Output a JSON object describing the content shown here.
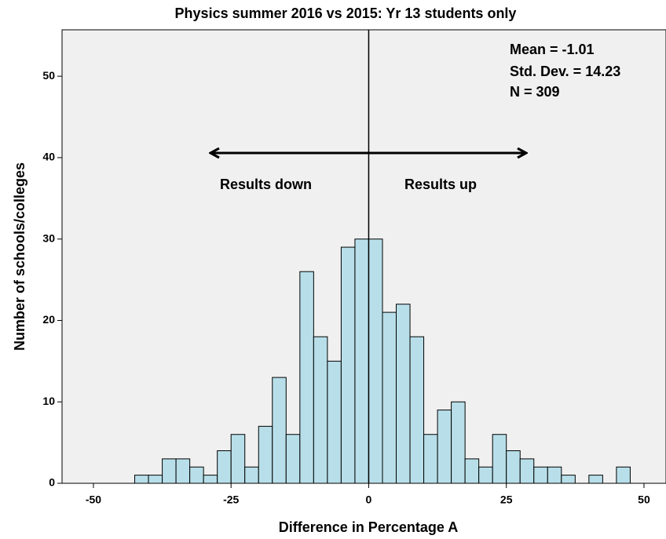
{
  "chart_data": {
    "type": "histogram",
    "title": "Physics summer 2016 vs 2015: Yr 13 students only",
    "x_label": "Difference in Percentage A",
    "y_label": "Number of schools/colleges",
    "annotations": [
      "Mean = -1.01",
      "Std. Dev. = 14.23",
      "N = 309",
      "Results down",
      "Results up"
    ],
    "bins": [
      -42.5,
      -40,
      -37.5,
      -35,
      -32.5,
      -30,
      -27.5,
      -25,
      -22.5,
      -20,
      -17.5,
      -15,
      -12.5,
      -10,
      -7.5,
      -5,
      -2.5,
      0,
      2.5,
      5,
      7.5,
      10,
      12.5,
      15,
      17.5,
      20,
      22.5,
      25,
      27.5,
      30,
      32.5,
      35,
      37.5,
      40,
      42.5,
      45,
      47.5
    ],
    "values": [
      1,
      1,
      3,
      3,
      2,
      1,
      4,
      6,
      2,
      7,
      13,
      6,
      26,
      18,
      15,
      29,
      30,
      30,
      21,
      22,
      18,
      6,
      9,
      10,
      3,
      2,
      6,
      4,
      3,
      2,
      2,
      1,
      0,
      1,
      0,
      2
    ],
    "color": "#b8dfe9",
    "reference_line": 0,
    "xlim": [
      -55.7,
      54
    ],
    "xticks": [
      -50,
      -25,
      0,
      25,
      50
    ],
    "ylim": [
      0,
      55.7
    ],
    "yticks": [
      0,
      10,
      20,
      30,
      40,
      50
    ],
    "grid": false
  }
}
